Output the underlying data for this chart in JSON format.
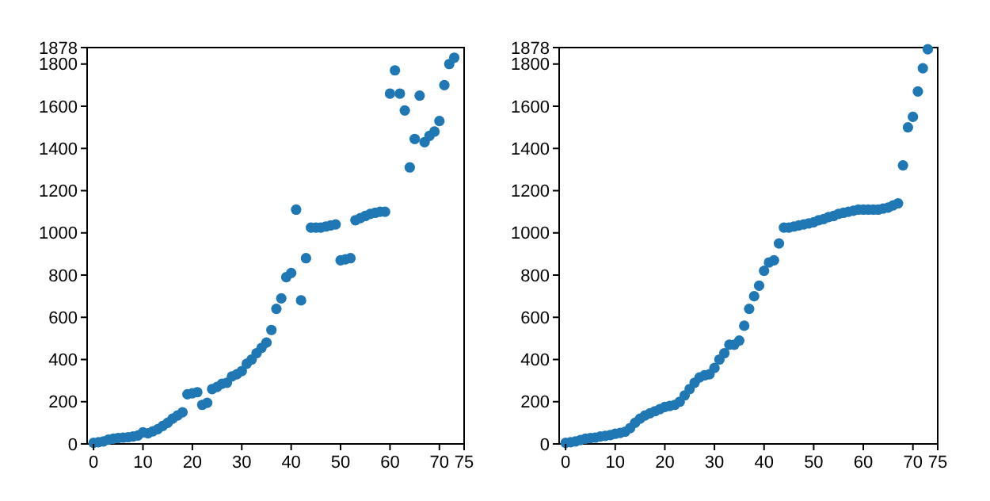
{
  "chart_data": [
    {
      "type": "scatter",
      "x": [
        0,
        1,
        2,
        3,
        4,
        5,
        6,
        7,
        8,
        9,
        10,
        11,
        12,
        13,
        14,
        15,
        16,
        17,
        18,
        19,
        20,
        21,
        22,
        23,
        24,
        25,
        26,
        27,
        28,
        29,
        30,
        31,
        32,
        33,
        34,
        35,
        36,
        37,
        38,
        39,
        40,
        41,
        42,
        43,
        44,
        45,
        46,
        47,
        48,
        49,
        50,
        51,
        52,
        53,
        54,
        55,
        56,
        57,
        58,
        59,
        60,
        61,
        62,
        63,
        64,
        65,
        66,
        67,
        68,
        69,
        70,
        71,
        72,
        73
      ],
      "series": [
        {
          "color": "#1f77b4",
          "values": [
            5,
            8,
            12,
            20,
            25,
            28,
            30,
            32,
            35,
            40,
            55,
            50,
            60,
            70,
            85,
            100,
            120,
            135,
            150,
            235,
            240,
            245,
            185,
            195,
            260,
            270,
            285,
            290,
            320,
            330,
            345,
            380,
            400,
            430,
            455,
            480,
            540,
            640,
            690,
            790,
            810,
            1110,
            680,
            880,
            1025,
            1025,
            1025,
            1030,
            1035,
            1040,
            870,
            875,
            880,
            1060,
            1070,
            1080,
            1090,
            1095,
            1100,
            1100,
            1660,
            1770,
            1660,
            1580,
            1310,
            1445,
            1650,
            1430,
            1460,
            1480,
            1530,
            1700,
            1800,
            1830
          ]
        }
      ],
      "xlim": [
        -1.3,
        75
      ],
      "xticks": [
        0,
        10,
        20,
        30,
        40,
        50,
        60,
        70,
        75
      ],
      "ylim": [
        0,
        1878
      ],
      "yticks": [
        0,
        200,
        400,
        600,
        800,
        1000,
        1200,
        1400,
        1600,
        1800,
        1878
      ],
      "marker": "circle"
    },
    {
      "type": "scatter",
      "x": [
        0,
        1,
        2,
        3,
        4,
        5,
        6,
        7,
        8,
        9,
        10,
        11,
        12,
        13,
        14,
        15,
        16,
        17,
        18,
        19,
        20,
        21,
        22,
        23,
        24,
        25,
        26,
        27,
        28,
        29,
        30,
        31,
        32,
        33,
        34,
        35,
        36,
        37,
        38,
        39,
        40,
        41,
        42,
        43,
        44,
        45,
        46,
        47,
        48,
        49,
        50,
        51,
        52,
        53,
        54,
        55,
        56,
        57,
        58,
        59,
        60,
        61,
        62,
        63,
        64,
        65,
        66,
        67,
        68,
        69,
        70,
        71,
        72,
        73
      ],
      "series": [
        {
          "color": "#1f77b4",
          "values": [
            5,
            8,
            12,
            18,
            25,
            28,
            30,
            35,
            38,
            42,
            48,
            52,
            58,
            75,
            100,
            120,
            135,
            145,
            155,
            165,
            175,
            180,
            185,
            200,
            230,
            260,
            290,
            315,
            325,
            330,
            360,
            400,
            430,
            470,
            470,
            490,
            560,
            640,
            700,
            750,
            820,
            860,
            870,
            950,
            1025,
            1025,
            1030,
            1035,
            1040,
            1045,
            1050,
            1060,
            1065,
            1075,
            1080,
            1090,
            1095,
            1100,
            1105,
            1110,
            1110,
            1110,
            1110,
            1110,
            1115,
            1120,
            1130,
            1140,
            1320,
            1500,
            1550,
            1670,
            1780,
            1870
          ]
        }
      ],
      "xlim": [
        -1.3,
        75
      ],
      "xticks": [
        0,
        10,
        20,
        30,
        40,
        50,
        60,
        70,
        75
      ],
      "ylim": [
        0,
        1878
      ],
      "yticks": [
        0,
        200,
        400,
        600,
        800,
        1000,
        1200,
        1400,
        1600,
        1800,
        1878
      ],
      "marker": "circle"
    }
  ]
}
